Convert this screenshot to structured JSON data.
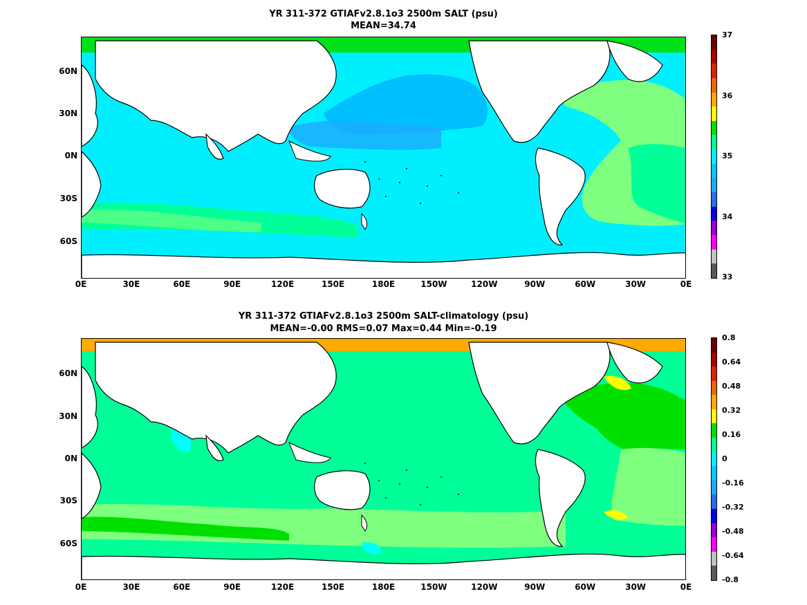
{
  "top_panel": {
    "title_line1": "YR 311-372 GTIAFv2.8.1o3 2500m SALT (psu)",
    "title_line2": "MEAN=34.74",
    "x_ticks": [
      "0E",
      "30E",
      "60E",
      "90E",
      "120E",
      "150E",
      "180E",
      "150W",
      "120W",
      "90W",
      "60W",
      "30W",
      "0E"
    ],
    "y_ticks": [
      "60N",
      "30N",
      "0N",
      "30S",
      "60S"
    ],
    "colorbar_labels": [
      "37",
      "36",
      "35",
      "34",
      "33"
    ],
    "colorbar_colors": [
      "#5a5a5a",
      "#c0c0c0",
      "#ff00ff",
      "#9b00d0",
      "#0000ee",
      "#2a6ef0",
      "#1eaaff",
      "#00c8ff",
      "#00f0ff",
      "#00ff90",
      "#00e000",
      "#ffff00",
      "#ffaa00",
      "#ee6600",
      "#dd2200",
      "#aa0000",
      "#6a0000"
    ],
    "colors": {
      "land": "#ffffff",
      "deep_pacific": "#00bfff",
      "pacific_mid": "#1eaaff",
      "ocean_main": "#00efff",
      "atlantic": "#7fff7f",
      "southern_band": "#00ff99",
      "arctic": "#00e01a"
    }
  },
  "bottom_panel": {
    "title_line1": "YR 311-372 GTIAFv2.8.1o3 2500m SALT-climatology (psu)",
    "title_line2": "MEAN=-0.00   RMS=0.07   Max=0.44   Min=-0.19",
    "x_ticks": [
      "0E",
      "30E",
      "60E",
      "90E",
      "120E",
      "150E",
      "180E",
      "150W",
      "120W",
      "90W",
      "60W",
      "30W",
      "0E"
    ],
    "y_ticks": [
      "60N",
      "30N",
      "0N",
      "30S",
      "60S"
    ],
    "colorbar_labels": [
      "0.8",
      "0.64",
      "0.48",
      "0.32",
      "0.16",
      "0",
      "-0.16",
      "-0.32",
      "-0.48",
      "-0.64",
      "-0.8"
    ],
    "colorbar_colors": [
      "#5a5a5a",
      "#c0c0c0",
      "#ff00ff",
      "#9b00d0",
      "#0000ee",
      "#2a6ef0",
      "#1eaaff",
      "#00c8ff",
      "#00f0ff",
      "#00ff90",
      "#00e000",
      "#ffff00",
      "#ffaa00",
      "#ee6600",
      "#dd2200",
      "#aa0000",
      "#6a0000"
    ],
    "colors": {
      "land": "#ffffff",
      "ocean_main": "#00ff99",
      "atlantic_positive": "#00e000",
      "southern_positive": "#7fff7f",
      "yellow": "#ffff00",
      "orange": "#ffaa00",
      "negative": "#00ffff"
    }
  }
}
